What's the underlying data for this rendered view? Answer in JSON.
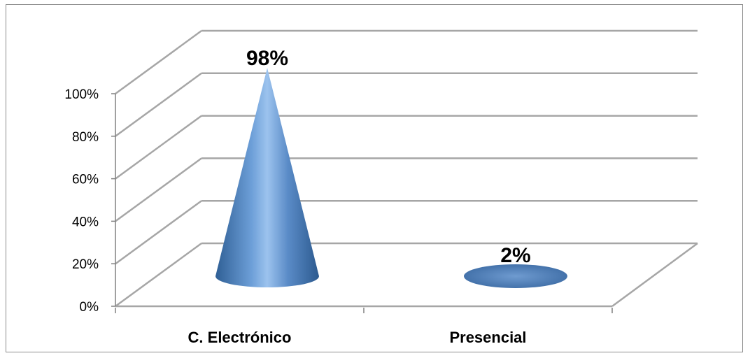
{
  "chart_data": {
    "type": "bar",
    "style": "3d-cone",
    "categories": [
      "C. Electrónico",
      "Presencial"
    ],
    "values": [
      98,
      2
    ],
    "value_labels": [
      "98%",
      "2%"
    ],
    "title": "",
    "xlabel": "",
    "ylabel": "",
    "ylim": [
      0,
      100
    ],
    "yticks": [
      "0%",
      "20%",
      "40%",
      "60%",
      "80%",
      "100%"
    ],
    "grid": true,
    "legend": "none",
    "colors": {
      "bar": "#4F81BD",
      "grid": "#a6a6a6",
      "axis": "#808080"
    }
  }
}
